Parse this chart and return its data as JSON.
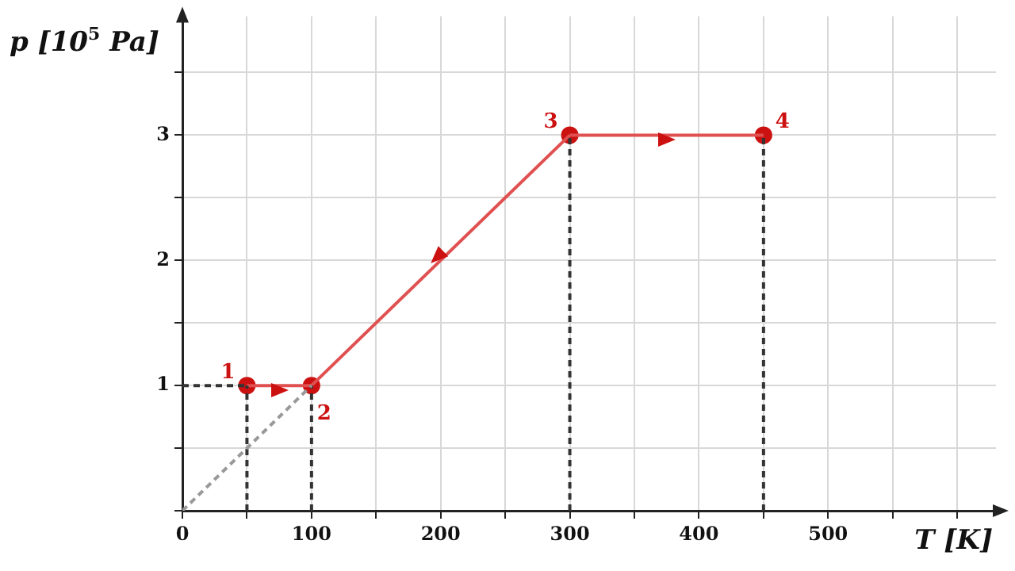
{
  "chart_data": {
    "type": "line",
    "xlabel": "T [K]",
    "ylabel": "p [10$^{5}$ Pa]",
    "xlim": [
      0,
      630
    ],
    "ylim": [
      0,
      3.95
    ],
    "xticks": [
      {
        "value": 0,
        "label": "0"
      },
      {
        "value": 50,
        "label": null
      },
      100,
      {
        "value": 150,
        "label": null
      },
      200,
      {
        "value": 250,
        "label": null
      },
      300,
      {
        "value": 350,
        "label": null
      },
      400,
      {
        "value": 450,
        "label": null
      },
      500,
      {
        "value": 550,
        "label": null
      },
      {
        "value": 600,
        "label": null
      }
    ],
    "yticks": [
      {
        "value": 0,
        "label": null
      },
      {
        "value": 0.5,
        "label": null
      },
      1,
      {
        "value": 1.5,
        "label": null
      },
      2,
      {
        "value": 2.5,
        "label": null
      },
      3,
      {
        "value": 3.5,
        "label": null
      }
    ],
    "grid": true,
    "legend": false,
    "series": [
      {
        "type": "line",
        "color": "#999999",
        "x": [
          0,
          100
        ],
        "values": [
          0,
          1
        ],
        "line_style": "dashed",
        "marker": "none"
      },
      {
        "type": "line",
        "color": "#333333",
        "x": [
          0,
          50
        ],
        "values": [
          1,
          1
        ],
        "line_style": "dashed",
        "marker": "none"
      },
      {
        "type": "line",
        "color": "#333333",
        "x": [
          50,
          50
        ],
        "values": [
          0,
          1
        ],
        "line_style": "dashed",
        "marker": "none"
      },
      {
        "type": "line",
        "color": "#333333",
        "x": [
          100,
          100
        ],
        "values": [
          0,
          1
        ],
        "line_style": "dashed",
        "marker": "none"
      },
      {
        "type": "line",
        "color": "#333333",
        "x": [
          300,
          300
        ],
        "values": [
          0,
          3
        ],
        "line_style": "dashed",
        "marker": "none"
      },
      {
        "type": "line",
        "color": "#333333",
        "x": [
          450,
          450
        ],
        "values": [
          0,
          3
        ],
        "line_style": "dashed",
        "marker": "none"
      },
      {
        "type": "line",
        "color": "#e05050",
        "x": [
          50,
          100
        ],
        "values": [
          1,
          1
        ],
        "line_style": "solid",
        "marker": "none"
      },
      {
        "type": "line",
        "color": "#e05050",
        "x": [
          300,
          100
        ],
        "values": [
          3,
          1
        ],
        "line_style": "solid",
        "marker": "none"
      },
      {
        "type": "line",
        "color": "#e05050",
        "x": [
          300,
          450
        ],
        "values": [
          3,
          3
        ],
        "line_style": "solid",
        "marker": "none"
      },
      {
        "type": "scatter",
        "color": "#cc1111",
        "x": [
          50,
          100,
          300,
          450
        ],
        "values": [
          1,
          1,
          3,
          3
        ],
        "marker": "circle"
      }
    ],
    "annotations": [
      {
        "text": "1",
        "x": 50,
        "y": 1
      },
      {
        "text": "2",
        "x": 100,
        "y": 1
      },
      {
        "text": "3",
        "x": 300,
        "y": 3
      },
      {
        "text": "4",
        "x": 450,
        "y": 3
      }
    ]
  }
}
